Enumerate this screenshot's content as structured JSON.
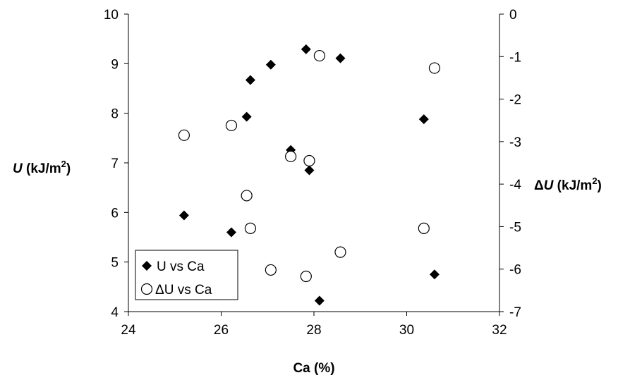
{
  "chart_data": {
    "type": "scatter",
    "xlabel": "Ca (%)",
    "ylabel": {
      "var": "U",
      "unit": " (kJ/m",
      "sup": "2",
      "close": ")"
    },
    "y2label": {
      "prefix": "Δ",
      "var": "U",
      "unit": " (kJ/m",
      "sup": "2",
      "close": ")"
    },
    "xlim": [
      24,
      32
    ],
    "ylim": [
      4,
      10
    ],
    "y2lim": [
      -7,
      0
    ],
    "x_ticks": [
      "24",
      "26",
      "28",
      "30",
      "32"
    ],
    "y_ticks": [
      "4",
      "5",
      "6",
      "7",
      "8",
      "9",
      "10"
    ],
    "y2_ticks": [
      "-7",
      "-6",
      "-5",
      "-4",
      "-3",
      "-2",
      "-1",
      "0"
    ],
    "grid": false,
    "legend_position": "bottom-left",
    "series": [
      {
        "name": "U vs Ca",
        "axis": "left",
        "marker": "filled-diamond",
        "color": "#000000",
        "points": [
          [
            25.2,
            5.94
          ],
          [
            26.22,
            5.6
          ],
          [
            26.55,
            7.93
          ],
          [
            26.63,
            8.67
          ],
          [
            27.07,
            8.98
          ],
          [
            27.5,
            7.26
          ],
          [
            27.83,
            9.29
          ],
          [
            27.9,
            6.85
          ],
          [
            28.12,
            4.22
          ],
          [
            28.57,
            9.11
          ],
          [
            30.37,
            7.88
          ],
          [
            30.6,
            4.75
          ]
        ]
      },
      {
        "name": "ΔU vs Ca",
        "axis": "right",
        "marker": "open-circle",
        "color": "#000000",
        "points": [
          [
            25.2,
            -2.85
          ],
          [
            26.22,
            -2.62
          ],
          [
            26.55,
            -4.27
          ],
          [
            26.63,
            -5.04
          ],
          [
            27.07,
            -6.02
          ],
          [
            27.5,
            -3.35
          ],
          [
            27.83,
            -6.17
          ],
          [
            27.9,
            -3.45
          ],
          [
            28.12,
            -0.98
          ],
          [
            28.57,
            -5.6
          ],
          [
            30.37,
            -5.04
          ],
          [
            30.6,
            -1.27
          ]
        ]
      }
    ]
  }
}
